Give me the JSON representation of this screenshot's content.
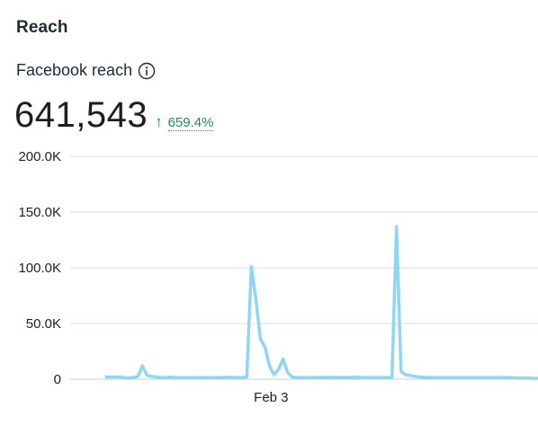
{
  "section": {
    "title": "Reach"
  },
  "metric": {
    "label": "Facebook reach",
    "info_icon": "info-icon",
    "value": "641,543",
    "change_icon": "arrow-up-icon",
    "change": "659.4%",
    "change_color": "#1d8a5f"
  },
  "chart_data": {
    "type": "line",
    "title": "",
    "xlabel": "",
    "ylabel": "",
    "ylim": [
      0,
      200000
    ],
    "yticks": [
      {
        "value": 0,
        "label": "0"
      },
      {
        "value": 50000,
        "label": "50.0K"
      },
      {
        "value": 100000,
        "label": "100.0K"
      },
      {
        "value": 150000,
        "label": "150.0K"
      },
      {
        "value": 200000,
        "label": "200.0K"
      }
    ],
    "xticks": [
      {
        "index": 32,
        "label": "Feb 3"
      }
    ],
    "grid": true,
    "line_color": "#8fd6f5",
    "series": [
      {
        "values": [
          2000,
          2000,
          2000,
          2000,
          1500,
          1000,
          1500,
          2500,
          12000,
          3500,
          2500,
          2000,
          1500,
          1500,
          1800,
          1500,
          1500,
          1200,
          1500,
          1200,
          1500,
          1500,
          1500,
          1500,
          1300,
          1500,
          1500,
          1800,
          1500,
          1500,
          1500,
          2000,
          101000,
          72000,
          36000,
          29000,
          12000,
          4000,
          9000,
          18000,
          6000,
          2000,
          1500,
          1500,
          1500,
          1300,
          1500,
          1500,
          1500,
          1800,
          1500,
          1500,
          1500,
          1500,
          1500,
          1800,
          1500,
          1500,
          1500,
          1500,
          1500,
          1500,
          1500,
          1500,
          137000,
          7000,
          4000,
          3500,
          2500,
          2000,
          1800,
          1500,
          1500,
          1500,
          1500,
          1500,
          1500,
          1500,
          1500,
          1500,
          1500,
          1500,
          1500,
          1500,
          1500,
          1500,
          1500,
          1500,
          1500,
          1500,
          1200,
          1000,
          1000,
          1000,
          800,
          800
        ]
      }
    ]
  }
}
